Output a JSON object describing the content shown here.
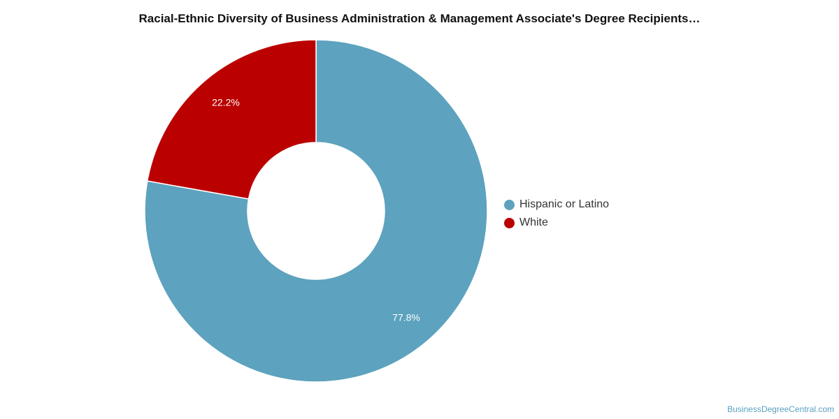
{
  "title": "Racial-Ethnic Diversity of Business Administration & Management Associate's Degree Recipients…",
  "credit": "BusinessDegreeCentral.com",
  "chart_data": {
    "type": "pie",
    "variant": "donut",
    "title": "Racial-Ethnic Diversity of Business Administration & Management Associate's Degree Recipients…",
    "legend_placement": "right",
    "slices": [
      {
        "label": "Hispanic or Latino",
        "value": 77.8,
        "display": "77.8%",
        "color": "#5da2be"
      },
      {
        "label": "White",
        "value": 22.2,
        "display": "22.2%",
        "color": "#bb0000"
      }
    ]
  }
}
